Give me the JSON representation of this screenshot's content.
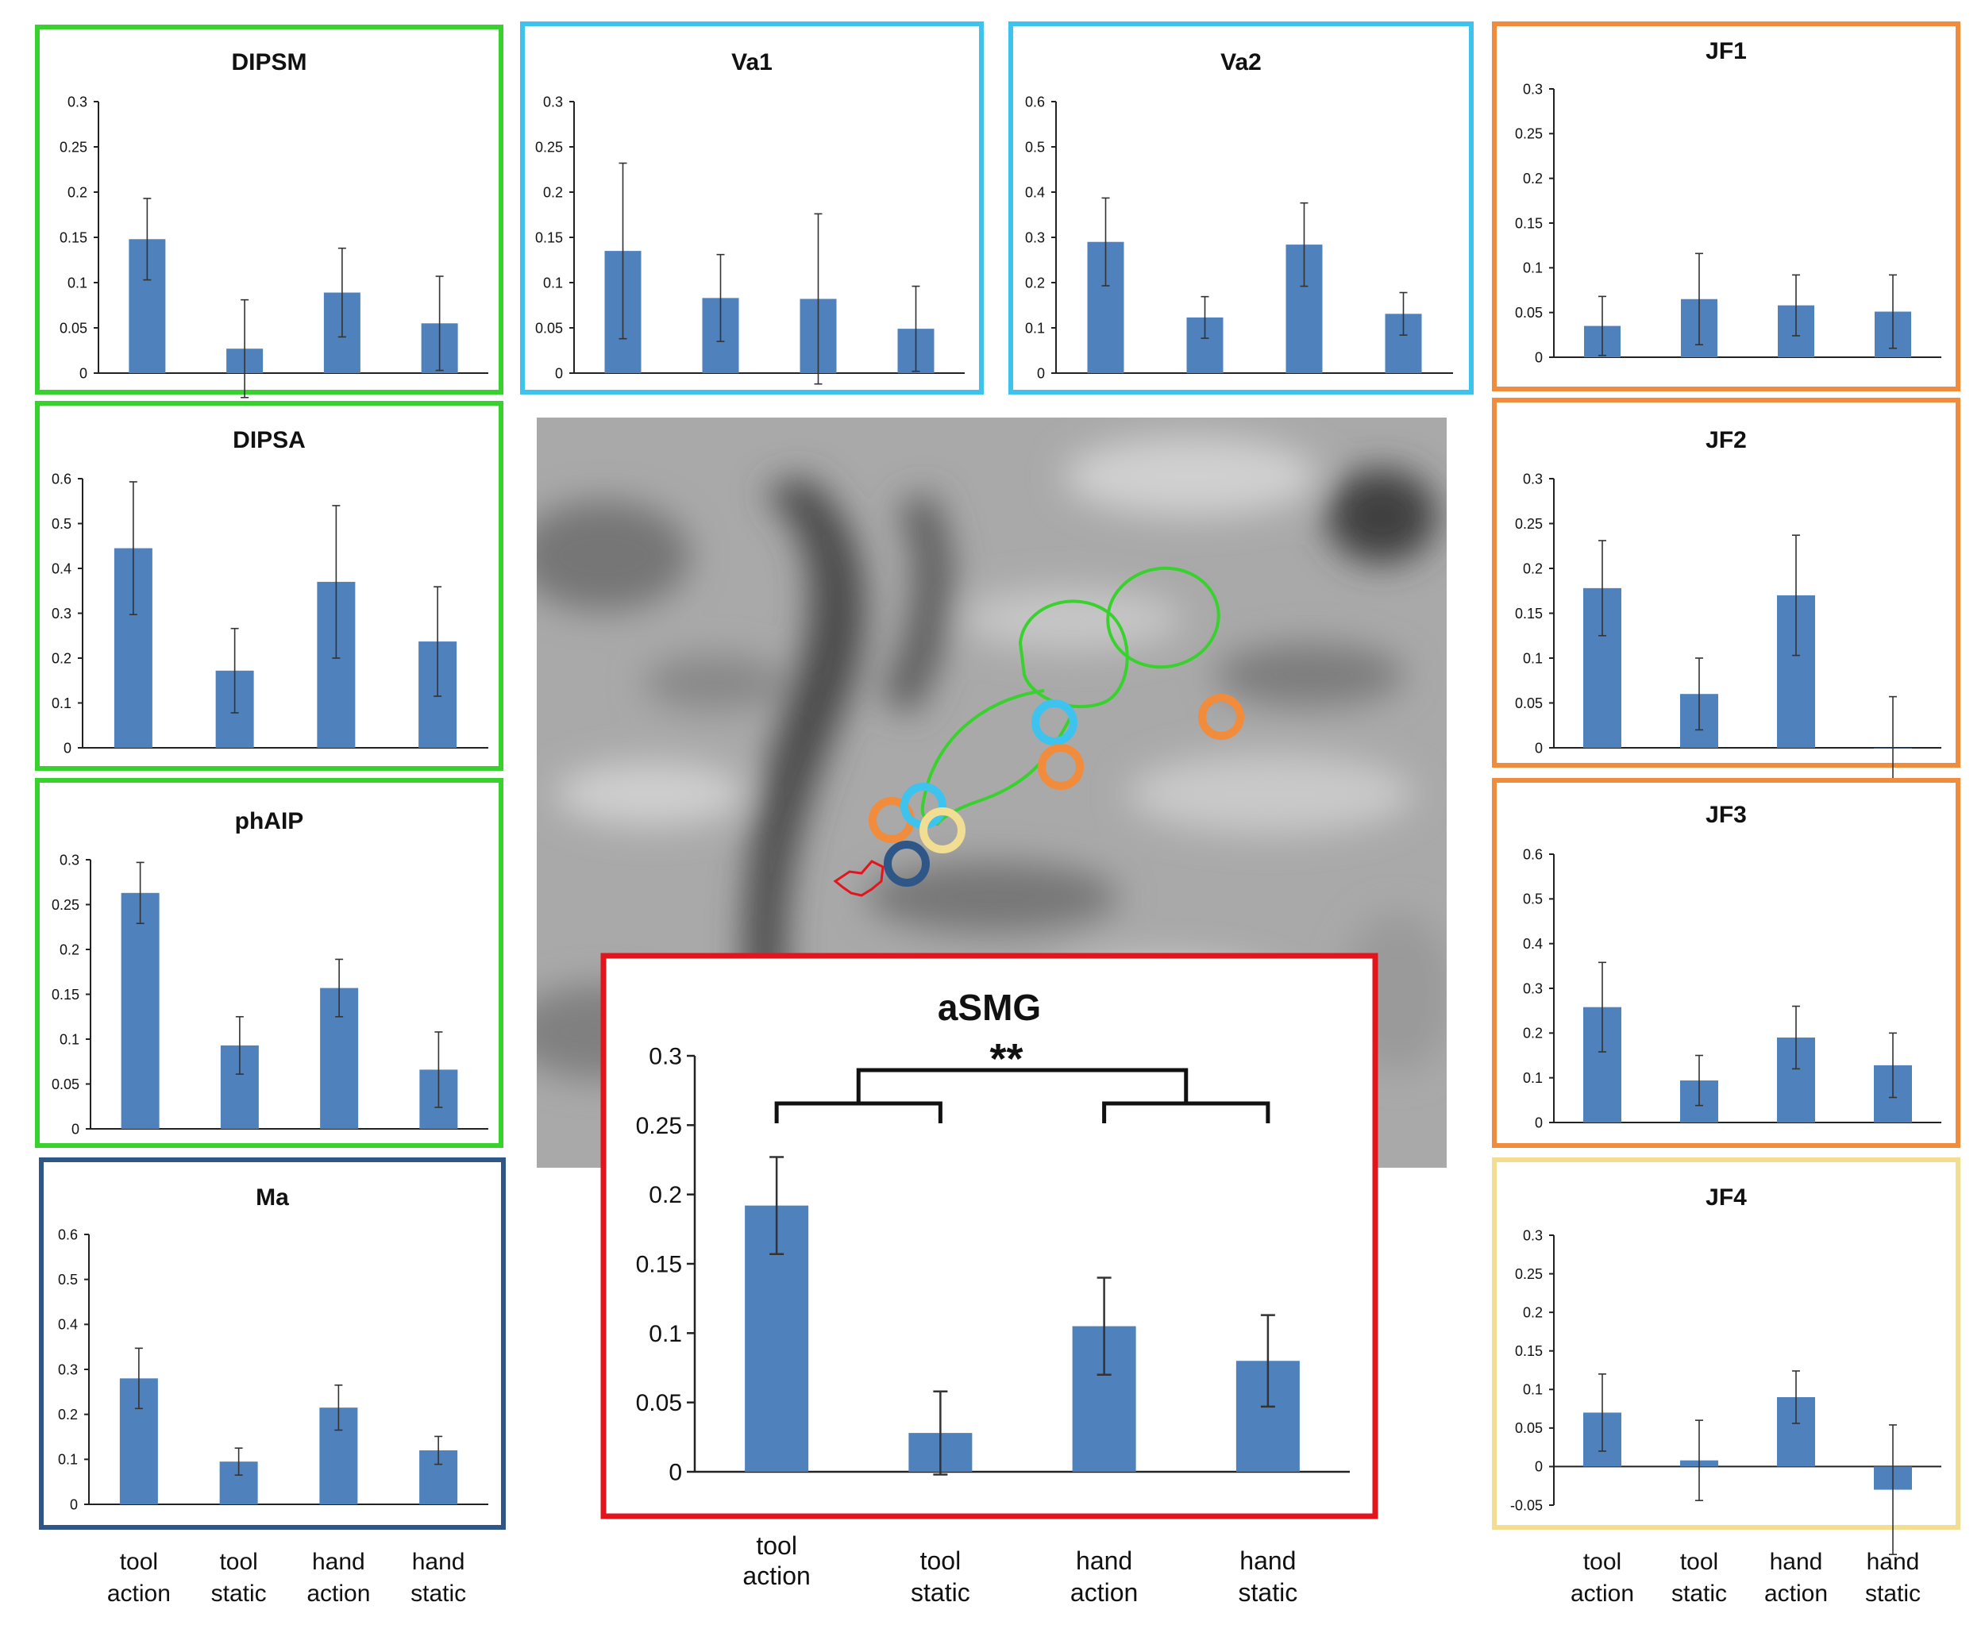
{
  "colors": {
    "bar": "#4f81bd",
    "frame_green": "#39d12e",
    "frame_cyan": "#3dc3ee",
    "frame_orange": "#f08c3c",
    "frame_navy": "#2e5687",
    "frame_yellow": "#f1de92",
    "frame_red": "#e3141c",
    "brain_bg": "#a9a9a9"
  },
  "conditions": [
    {
      "line1": "tool",
      "line2": "action"
    },
    {
      "line1": "tool",
      "line2": "static"
    },
    {
      "line1": "hand",
      "line2": "action"
    },
    {
      "line1": "hand",
      "line2": "static"
    }
  ],
  "significance": "**",
  "brain_roi_markers": [
    "green-outline",
    "cyan-ring",
    "orange-ring",
    "yellow-ring",
    "navy-ring",
    "red-outline"
  ],
  "chart_data": [
    {
      "id": "DIPSM",
      "type": "bar",
      "title": "DIPSM",
      "frame": "green",
      "categories": [
        "tool action",
        "tool static",
        "hand action",
        "hand static"
      ],
      "values": [
        0.148,
        0.027,
        0.089,
        0.055
      ],
      "errors": [
        0.045,
        0.054,
        0.049,
        0.052
      ],
      "ylim": [
        0,
        0.3
      ],
      "ticks": [
        "0",
        "0.05",
        "0.1",
        "0.15",
        "0.2",
        "0.25",
        "0.3"
      ]
    },
    {
      "id": "Va1",
      "type": "bar",
      "title": "Va1",
      "frame": "cyan",
      "categories": [
        "tool action",
        "tool static",
        "hand action",
        "hand static"
      ],
      "values": [
        0.135,
        0.083,
        0.082,
        0.049
      ],
      "errors": [
        0.097,
        0.048,
        0.094,
        0.047
      ],
      "ylim": [
        0,
        0.3
      ],
      "ticks": [
        "0",
        "0.05",
        "0.1",
        "0.15",
        "0.2",
        "0.25",
        "0.3"
      ]
    },
    {
      "id": "Va2",
      "type": "bar",
      "title": "Va2",
      "frame": "cyan",
      "categories": [
        "tool action",
        "tool static",
        "hand action",
        "hand static"
      ],
      "values": [
        0.29,
        0.123,
        0.284,
        0.131
      ],
      "errors": [
        0.097,
        0.046,
        0.092,
        0.047
      ],
      "ylim": [
        0,
        0.6
      ],
      "ticks": [
        "0",
        "0.1",
        "0.2",
        "0.3",
        "0.4",
        "0.5",
        "0.6"
      ]
    },
    {
      "id": "JF1",
      "type": "bar",
      "title": "JF1",
      "frame": "orange",
      "categories": [
        "tool action",
        "tool static",
        "hand action",
        "hand static"
      ],
      "values": [
        0.035,
        0.065,
        0.058,
        0.051
      ],
      "errors": [
        0.033,
        0.051,
        0.034,
        0.041
      ],
      "ylim": [
        0,
        0.3
      ],
      "ticks": [
        "0",
        "0.05",
        "0.1",
        "0.15",
        "0.2",
        "0.25",
        "0.3"
      ]
    },
    {
      "id": "DIPSA",
      "type": "bar",
      "title": "DIPSA",
      "frame": "green",
      "categories": [
        "tool action",
        "tool static",
        "hand action",
        "hand static"
      ],
      "values": [
        0.445,
        0.172,
        0.37,
        0.237
      ],
      "errors": [
        0.148,
        0.094,
        0.17,
        0.122
      ],
      "ylim": [
        0,
        0.6
      ],
      "ticks": [
        "0",
        "0.1",
        "0.2",
        "0.3",
        "0.4",
        "0.5",
        "0.6"
      ]
    },
    {
      "id": "JF2",
      "type": "bar",
      "title": "JF2",
      "frame": "orange",
      "categories": [
        "tool action",
        "tool static",
        "hand action",
        "hand static"
      ],
      "values": [
        0.178,
        0.06,
        0.17,
        0.0
      ],
      "errors": [
        0.053,
        0.04,
        0.067,
        0.057
      ],
      "ylim": [
        0,
        0.3
      ],
      "ticks": [
        "0",
        "0.05",
        "0.1",
        "0.15",
        "0.2",
        "0.25",
        "0.3"
      ]
    },
    {
      "id": "phAIP",
      "type": "bar",
      "title": "phAIP",
      "frame": "green",
      "categories": [
        "tool action",
        "tool static",
        "hand action",
        "hand static"
      ],
      "values": [
        0.263,
        0.093,
        0.157,
        0.066
      ],
      "errors": [
        0.034,
        0.032,
        0.032,
        0.042
      ],
      "ylim": [
        0,
        0.3
      ],
      "ticks": [
        "0",
        "0.05",
        "0.1",
        "0.15",
        "0.2",
        "0.25",
        "0.3"
      ]
    },
    {
      "id": "JF3",
      "type": "bar",
      "title": "JF3",
      "frame": "orange",
      "categories": [
        "tool action",
        "tool static",
        "hand action",
        "hand static"
      ],
      "values": [
        0.258,
        0.094,
        0.19,
        0.128
      ],
      "errors": [
        0.1,
        0.056,
        0.07,
        0.072
      ],
      "ylim": [
        0,
        0.6
      ],
      "ticks": [
        "0",
        "0.1",
        "0.2",
        "0.3",
        "0.4",
        "0.5",
        "0.6"
      ]
    },
    {
      "id": "Ma",
      "type": "bar",
      "title": "Ma",
      "frame": "navy",
      "categories": [
        "tool action",
        "tool static",
        "hand action",
        "hand static"
      ],
      "values": [
        0.28,
        0.095,
        0.215,
        0.12
      ],
      "errors": [
        0.067,
        0.03,
        0.05,
        0.031
      ],
      "ylim": [
        0,
        0.6
      ],
      "ticks": [
        "0",
        "0.1",
        "0.2",
        "0.3",
        "0.4",
        "0.5",
        "0.6"
      ]
    },
    {
      "id": "JF4",
      "type": "bar",
      "title": "JF4",
      "frame": "yellow",
      "categories": [
        "tool action",
        "tool static",
        "hand action",
        "hand static"
      ],
      "values": [
        0.07,
        0.008,
        0.09,
        -0.03
      ],
      "errors": [
        0.05,
        0.052,
        0.034,
        0.084
      ],
      "ylim": [
        -0.05,
        0.3
      ],
      "ticks": [
        "-0.05",
        "0",
        "0.05",
        "0.1",
        "0.15",
        "0.2",
        "0.25",
        "0.3"
      ]
    },
    {
      "id": "aSMG",
      "type": "bar",
      "title": "aSMG",
      "frame": "red",
      "categories": [
        "tool action",
        "tool static",
        "hand action",
        "hand static"
      ],
      "values": [
        0.192,
        0.028,
        0.105,
        0.08
      ],
      "errors": [
        0.035,
        0.03,
        0.035,
        0.033
      ],
      "ylim": [
        0,
        0.3
      ],
      "ticks": [
        "0",
        "0.05",
        "0.1",
        "0.15",
        "0.2",
        "0.25",
        "0.3"
      ]
    }
  ]
}
